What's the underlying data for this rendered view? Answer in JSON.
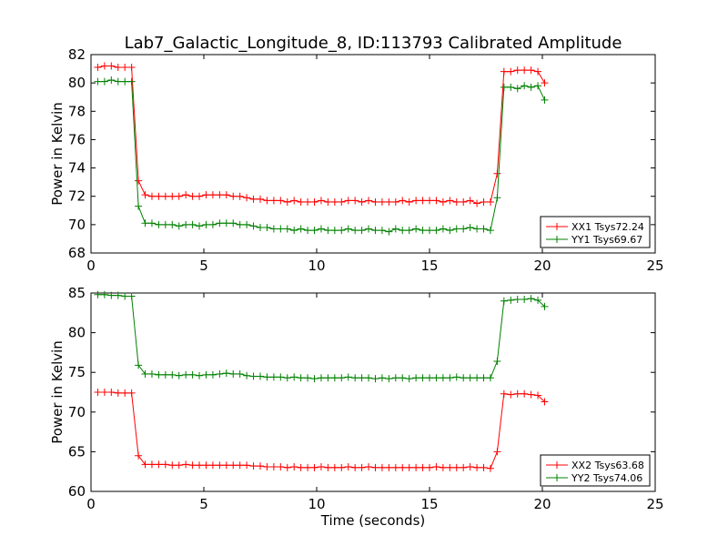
{
  "figure_title": "Lab7_Galactic_Longitude_8, ID:113793 Calibrated Amplitude",
  "chart_data": [
    {
      "type": "line",
      "title": "Lab7_Galactic_Longitude_8, ID:113793 Calibrated Amplitude",
      "xlabel": "",
      "ylabel": "Power in Kelvin",
      "xlim": [
        0,
        25
      ],
      "ylim": [
        68,
        82
      ],
      "xticks": [
        0,
        5,
        10,
        15,
        20,
        25
      ],
      "yticks": [
        68,
        70,
        72,
        74,
        76,
        78,
        80,
        82
      ],
      "grid": false,
      "legend_position": "lower-right",
      "series": [
        {
          "name": "XX1 Tsys72.24",
          "color": "#ff0000",
          "x": [
            0.3,
            0.6,
            0.9,
            1.2,
            1.5,
            1.8,
            2.1,
            2.4,
            2.7,
            3.0,
            3.3,
            3.6,
            3.9,
            4.2,
            4.5,
            4.8,
            5.1,
            5.4,
            5.7,
            6.0,
            6.3,
            6.6,
            6.9,
            7.2,
            7.5,
            7.8,
            8.1,
            8.4,
            8.7,
            9.0,
            9.3,
            9.6,
            9.9,
            10.2,
            10.5,
            10.8,
            11.1,
            11.4,
            11.7,
            12.0,
            12.3,
            12.6,
            12.9,
            13.2,
            13.5,
            13.8,
            14.1,
            14.4,
            14.7,
            15.0,
            15.3,
            15.6,
            15.9,
            16.2,
            16.5,
            16.8,
            17.1,
            17.4,
            17.7,
            18.0,
            18.3,
            18.6,
            18.9,
            19.2,
            19.5,
            19.8,
            20.1
          ],
          "y": [
            81.1,
            81.2,
            81.2,
            81.1,
            81.1,
            81.1,
            73.1,
            72.1,
            72.0,
            72.0,
            72.0,
            72.0,
            72.0,
            72.1,
            72.0,
            72.0,
            72.1,
            72.1,
            72.1,
            72.1,
            72.0,
            72.0,
            71.9,
            71.8,
            71.8,
            71.7,
            71.7,
            71.7,
            71.6,
            71.7,
            71.6,
            71.6,
            71.6,
            71.7,
            71.6,
            71.6,
            71.6,
            71.7,
            71.7,
            71.6,
            71.7,
            71.6,
            71.6,
            71.6,
            71.6,
            71.7,
            71.6,
            71.7,
            71.7,
            71.7,
            71.7,
            71.6,
            71.7,
            71.6,
            71.6,
            71.7,
            71.5,
            71.6,
            71.6,
            73.6,
            80.8,
            80.8,
            80.9,
            80.9,
            80.9,
            80.8,
            80.0
          ]
        },
        {
          "name": "YY1 Tsys69.67",
          "color": "#008000",
          "x": [
            0.3,
            0.6,
            0.9,
            1.2,
            1.5,
            1.8,
            2.1,
            2.4,
            2.7,
            3.0,
            3.3,
            3.6,
            3.9,
            4.2,
            4.5,
            4.8,
            5.1,
            5.4,
            5.7,
            6.0,
            6.3,
            6.6,
            6.9,
            7.2,
            7.5,
            7.8,
            8.1,
            8.4,
            8.7,
            9.0,
            9.3,
            9.6,
            9.9,
            10.2,
            10.5,
            10.8,
            11.1,
            11.4,
            11.7,
            12.0,
            12.3,
            12.6,
            12.9,
            13.2,
            13.5,
            13.8,
            14.1,
            14.4,
            14.7,
            15.0,
            15.3,
            15.6,
            15.9,
            16.2,
            16.5,
            16.8,
            17.1,
            17.4,
            17.7,
            18.0,
            18.3,
            18.6,
            18.9,
            19.2,
            19.5,
            19.8,
            20.1
          ],
          "y": [
            80.1,
            80.1,
            80.2,
            80.1,
            80.1,
            80.1,
            71.3,
            70.1,
            70.1,
            70.0,
            70.0,
            70.0,
            69.9,
            70.0,
            70.0,
            69.9,
            70.0,
            70.0,
            70.1,
            70.1,
            70.1,
            70.0,
            70.0,
            69.9,
            69.8,
            69.8,
            69.7,
            69.7,
            69.7,
            69.6,
            69.7,
            69.6,
            69.6,
            69.7,
            69.6,
            69.6,
            69.6,
            69.7,
            69.6,
            69.6,
            69.7,
            69.6,
            69.6,
            69.5,
            69.7,
            69.6,
            69.6,
            69.7,
            69.6,
            69.6,
            69.6,
            69.7,
            69.6,
            69.7,
            69.7,
            69.8,
            69.7,
            69.7,
            69.6,
            71.9,
            79.7,
            79.7,
            79.6,
            79.8,
            79.7,
            79.8,
            78.8
          ]
        }
      ]
    },
    {
      "type": "line",
      "title": "",
      "xlabel": "Time (seconds)",
      "ylabel": "Power in Kelvin",
      "xlim": [
        0,
        25
      ],
      "ylim": [
        60,
        85
      ],
      "xticks": [
        0,
        5,
        10,
        15,
        20,
        25
      ],
      "yticks": [
        60,
        65,
        70,
        75,
        80,
        85
      ],
      "grid": false,
      "legend_position": "lower-right",
      "series": [
        {
          "name": "XX2 Tsys63.68",
          "color": "#ff0000",
          "x": [
            0.3,
            0.6,
            0.9,
            1.2,
            1.5,
            1.8,
            2.1,
            2.4,
            2.7,
            3.0,
            3.3,
            3.6,
            3.9,
            4.2,
            4.5,
            4.8,
            5.1,
            5.4,
            5.7,
            6.0,
            6.3,
            6.6,
            6.9,
            7.2,
            7.5,
            7.8,
            8.1,
            8.4,
            8.7,
            9.0,
            9.3,
            9.6,
            9.9,
            10.2,
            10.5,
            10.8,
            11.1,
            11.4,
            11.7,
            12.0,
            12.3,
            12.6,
            12.9,
            13.2,
            13.5,
            13.8,
            14.1,
            14.4,
            14.7,
            15.0,
            15.3,
            15.6,
            15.9,
            16.2,
            16.5,
            16.8,
            17.1,
            17.4,
            17.7,
            18.0,
            18.3,
            18.6,
            18.9,
            19.2,
            19.5,
            19.8,
            20.1
          ],
          "y": [
            72.5,
            72.5,
            72.5,
            72.4,
            72.4,
            72.4,
            64.5,
            63.4,
            63.4,
            63.4,
            63.4,
            63.3,
            63.3,
            63.4,
            63.3,
            63.3,
            63.3,
            63.3,
            63.3,
            63.3,
            63.3,
            63.3,
            63.3,
            63.2,
            63.2,
            63.1,
            63.1,
            63.1,
            63.0,
            63.1,
            63.0,
            63.0,
            63.0,
            63.1,
            63.0,
            63.0,
            63.0,
            63.1,
            63.0,
            63.0,
            63.1,
            63.0,
            63.0,
            63.0,
            63.0,
            63.0,
            63.0,
            63.0,
            63.0,
            63.0,
            63.1,
            63.0,
            63.0,
            63.0,
            63.0,
            63.1,
            63.0,
            63.0,
            62.9,
            65.0,
            72.3,
            72.2,
            72.3,
            72.3,
            72.2,
            72.1,
            71.3
          ]
        },
        {
          "name": "YY2 Tsys74.06",
          "color": "#008000",
          "x": [
            0.3,
            0.6,
            0.9,
            1.2,
            1.5,
            1.8,
            2.1,
            2.4,
            2.7,
            3.0,
            3.3,
            3.6,
            3.9,
            4.2,
            4.5,
            4.8,
            5.1,
            5.4,
            5.7,
            6.0,
            6.3,
            6.6,
            6.9,
            7.2,
            7.5,
            7.8,
            8.1,
            8.4,
            8.7,
            9.0,
            9.3,
            9.6,
            9.9,
            10.2,
            10.5,
            10.8,
            11.1,
            11.4,
            11.7,
            12.0,
            12.3,
            12.6,
            12.9,
            13.2,
            13.5,
            13.8,
            14.1,
            14.4,
            14.7,
            15.0,
            15.3,
            15.6,
            15.9,
            16.2,
            16.5,
            16.8,
            17.1,
            17.4,
            17.7,
            18.0,
            18.3,
            18.6,
            18.9,
            19.2,
            19.5,
            19.8,
            20.1
          ],
          "y": [
            84.8,
            84.8,
            84.7,
            84.7,
            84.6,
            84.6,
            75.9,
            74.8,
            74.8,
            74.7,
            74.7,
            74.7,
            74.6,
            74.7,
            74.7,
            74.6,
            74.7,
            74.7,
            74.8,
            74.9,
            74.8,
            74.8,
            74.6,
            74.5,
            74.5,
            74.4,
            74.4,
            74.4,
            74.3,
            74.4,
            74.3,
            74.3,
            74.2,
            74.3,
            74.3,
            74.3,
            74.3,
            74.4,
            74.3,
            74.3,
            74.3,
            74.2,
            74.3,
            74.2,
            74.3,
            74.3,
            74.2,
            74.3,
            74.3,
            74.3,
            74.3,
            74.3,
            74.3,
            74.4,
            74.3,
            74.3,
            74.3,
            74.3,
            74.3,
            76.4,
            84.0,
            84.1,
            84.2,
            84.2,
            84.3,
            84.1,
            83.3
          ]
        }
      ]
    }
  ]
}
